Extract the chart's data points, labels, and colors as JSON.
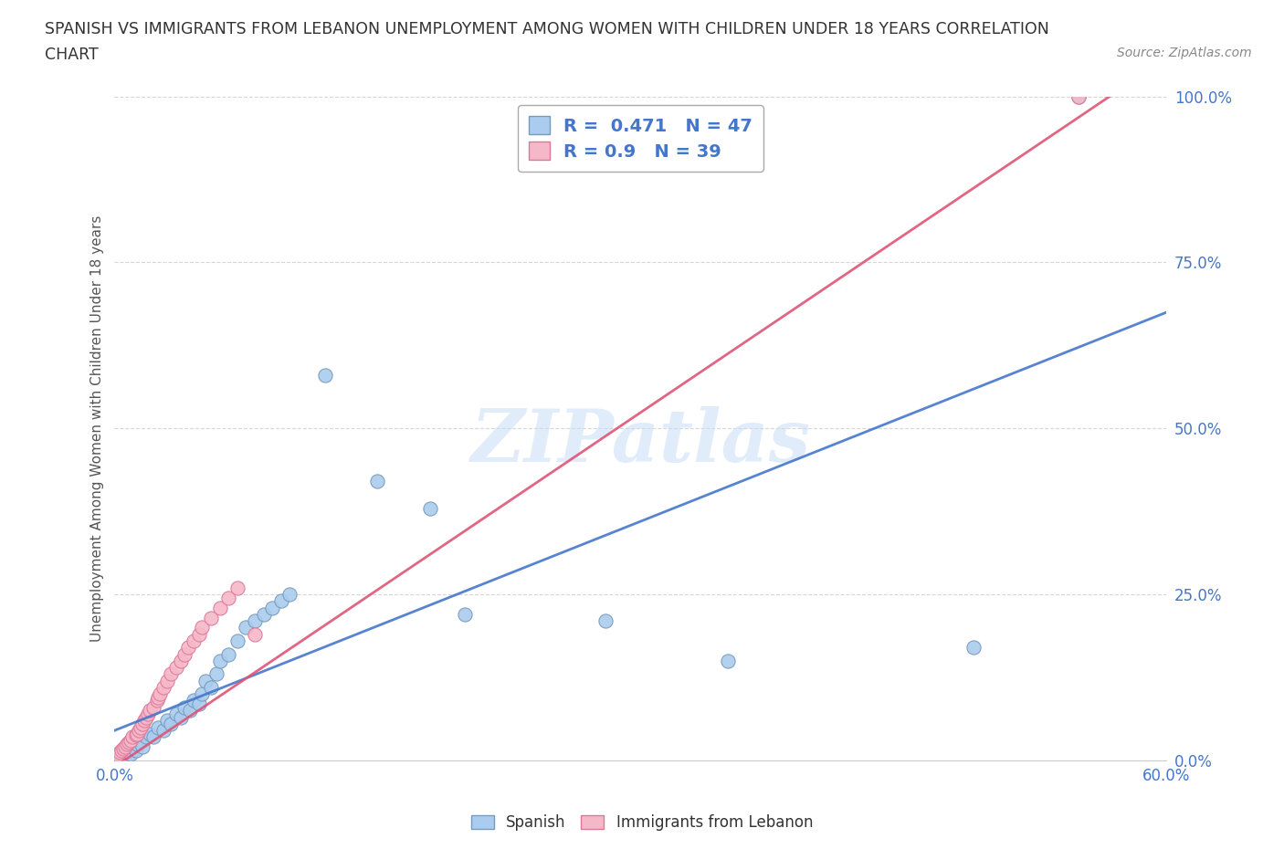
{
  "title_line1": "SPANISH VS IMMIGRANTS FROM LEBANON UNEMPLOYMENT AMONG WOMEN WITH CHILDREN UNDER 18 YEARS CORRELATION",
  "title_line2": "CHART",
  "source": "Source: ZipAtlas.com",
  "ylabel": "Unemployment Among Women with Children Under 18 years",
  "xlim": [
    0.0,
    0.6
  ],
  "ylim": [
    0.0,
    1.0
  ],
  "xtick_positions": [
    0.0,
    0.6
  ],
  "xticklabels": [
    "0.0%",
    "60.0%"
  ],
  "ytick_positions": [
    0.0,
    0.25,
    0.5,
    0.75,
    1.0
  ],
  "yticklabels": [
    "0.0%",
    "25.0%",
    "50.0%",
    "75.0%",
    "100.0%"
  ],
  "spanish_color": "#aaccee",
  "spanish_edge": "#7799bb",
  "lebanon_color": "#f5b8c8",
  "lebanon_edge": "#dd7799",
  "trend_spanish_color": "#4477cc",
  "trend_lebanon_color": "#dd5577",
  "R_spanish": 0.471,
  "N_spanish": 47,
  "R_lebanon": 0.9,
  "N_lebanon": 39,
  "watermark": "ZIPatlas",
  "background_color": "#ffffff",
  "grid_color": "#cccccc",
  "legend_label_spanish": "Spanish",
  "legend_label_lebanon": "Immigrants from Lebanon",
  "spanish_x": [
    0.002,
    0.003,
    0.004,
    0.005,
    0.006,
    0.007,
    0.008,
    0.009,
    0.01,
    0.012,
    0.013,
    0.015,
    0.016,
    0.018,
    0.02,
    0.022,
    0.025,
    0.028,
    0.03,
    0.032,
    0.035,
    0.038,
    0.04,
    0.043,
    0.045,
    0.048,
    0.05,
    0.052,
    0.055,
    0.058,
    0.06,
    0.065,
    0.07,
    0.075,
    0.08,
    0.085,
    0.09,
    0.095,
    0.1,
    0.12,
    0.15,
    0.18,
    0.2,
    0.28,
    0.35,
    0.49,
    0.55
  ],
  "spanish_y": [
    0.005,
    0.01,
    0.008,
    0.015,
    0.012,
    0.006,
    0.018,
    0.01,
    0.02,
    0.015,
    0.025,
    0.03,
    0.02,
    0.035,
    0.04,
    0.035,
    0.05,
    0.045,
    0.06,
    0.055,
    0.07,
    0.065,
    0.08,
    0.075,
    0.09,
    0.085,
    0.1,
    0.12,
    0.11,
    0.13,
    0.15,
    0.16,
    0.18,
    0.2,
    0.21,
    0.22,
    0.23,
    0.24,
    0.25,
    0.58,
    0.42,
    0.38,
    0.22,
    0.21,
    0.15,
    0.17,
    1.0
  ],
  "lebanon_x": [
    0.001,
    0.002,
    0.003,
    0.004,
    0.005,
    0.006,
    0.007,
    0.008,
    0.009,
    0.01,
    0.012,
    0.013,
    0.014,
    0.015,
    0.016,
    0.017,
    0.018,
    0.019,
    0.02,
    0.022,
    0.024,
    0.025,
    0.026,
    0.028,
    0.03,
    0.032,
    0.035,
    0.038,
    0.04,
    0.042,
    0.045,
    0.048,
    0.05,
    0.055,
    0.06,
    0.065,
    0.07,
    0.08,
    0.55
  ],
  "lebanon_y": [
    0.005,
    0.008,
    0.012,
    0.015,
    0.018,
    0.02,
    0.025,
    0.028,
    0.03,
    0.035,
    0.038,
    0.04,
    0.045,
    0.05,
    0.055,
    0.06,
    0.065,
    0.07,
    0.075,
    0.08,
    0.09,
    0.095,
    0.1,
    0.11,
    0.12,
    0.13,
    0.14,
    0.15,
    0.16,
    0.17,
    0.18,
    0.19,
    0.2,
    0.215,
    0.23,
    0.245,
    0.26,
    0.19,
    1.0
  ],
  "trend_spanish_slope": 1.05,
  "trend_spanish_intercept": 0.045,
  "trend_lebanon_slope": 1.78,
  "trend_lebanon_intercept": -0.01
}
